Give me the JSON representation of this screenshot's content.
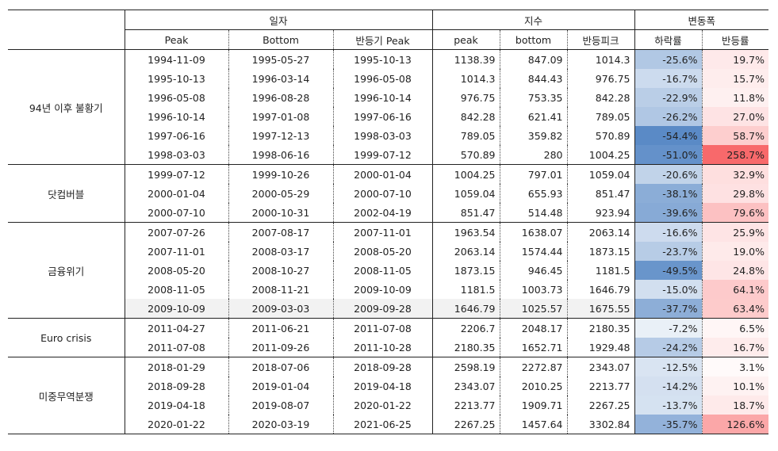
{
  "headers": {
    "group_dates": "일자",
    "group_index": "지수",
    "group_change": "변동폭",
    "cols": [
      "Peak",
      "Bottom",
      "반등기 Peak",
      "peak",
      "bottom",
      "반등피크",
      "하락률",
      "반등률"
    ]
  },
  "colors": {
    "neg_max": "#5a8ac6",
    "pos_max": "#f8696b",
    "neutral": "#ffffff"
  },
  "groups": [
    {
      "label": "94년 이후 불황기",
      "rows": [
        [
          "1994-11-09",
          "1995-05-27",
          "1995-10-13",
          "1138.39",
          "847.09",
          "1014.3",
          "-25.6%",
          "19.7%"
        ],
        [
          "1995-10-13",
          "1996-03-14",
          "1996-05-08",
          "1014.3",
          "844.43",
          "976.75",
          "-16.7%",
          "15.7%"
        ],
        [
          "1996-05-08",
          "1996-08-28",
          "1996-10-14",
          "976.75",
          "753.35",
          "842.28",
          "-22.9%",
          "11.8%"
        ],
        [
          "1996-10-14",
          "1997-01-08",
          "1997-06-16",
          "842.28",
          "621.41",
          "789.05",
          "-26.2%",
          "27.0%"
        ],
        [
          "1997-06-16",
          "1997-12-13",
          "1998-03-03",
          "789.05",
          "359.82",
          "570.89",
          "-54.4%",
          "58.7%"
        ],
        [
          "1998-03-03",
          "1998-06-16",
          "1999-07-12",
          "570.89",
          "280",
          "1004.25",
          "-51.0%",
          "258.7%"
        ]
      ]
    },
    {
      "label": "닷컴버블",
      "rows": [
        [
          "1999-07-12",
          "1999-10-26",
          "2000-01-04",
          "1004.25",
          "797.01",
          "1059.04",
          "-20.6%",
          "32.9%"
        ],
        [
          "2000-01-04",
          "2000-05-29",
          "2000-07-10",
          "1059.04",
          "655.93",
          "851.47",
          "-38.1%",
          "29.8%"
        ],
        [
          "2000-07-10",
          "2000-10-31",
          "2002-04-19",
          "851.47",
          "514.48",
          "923.94",
          "-39.6%",
          "79.6%"
        ]
      ]
    },
    {
      "label": "금융위기",
      "rows": [
        [
          "2007-07-26",
          "2007-08-17",
          "2007-11-01",
          "1963.54",
          "1638.07",
          "2063.14",
          "-16.6%",
          "25.9%"
        ],
        [
          "2007-11-01",
          "2008-03-17",
          "2008-05-20",
          "2063.14",
          "1574.44",
          "1873.15",
          "-23.7%",
          "19.0%"
        ],
        [
          "2008-05-20",
          "2008-10-27",
          "2008-11-05",
          "1873.15",
          "946.45",
          "1181.5",
          "-49.5%",
          "24.8%"
        ],
        [
          "2008-11-05",
          "2008-11-21",
          "2009-10-09",
          "1181.5",
          "1003.73",
          "1646.79",
          "-15.0%",
          "64.1%"
        ],
        [
          "2009-10-09",
          "2009-03-03",
          "2009-09-28",
          "1646.79",
          "1025.57",
          "1675.55",
          "-37.7%",
          "63.4%"
        ]
      ]
    },
    {
      "label": "Euro crisis",
      "rows": [
        [
          "2011-04-27",
          "2011-06-21",
          "2011-07-08",
          "2206.7",
          "2048.17",
          "2180.35",
          "-7.2%",
          "6.5%"
        ],
        [
          "2011-07-08",
          "2011-09-26",
          "2011-10-28",
          "2180.35",
          "1652.71",
          "1929.48",
          "-24.2%",
          "16.7%"
        ]
      ]
    },
    {
      "label": "미중무역분쟁",
      "rows": [
        [
          "2018-01-29",
          "2018-07-06",
          "2018-09-28",
          "2598.19",
          "2272.87",
          "2343.07",
          "-12.5%",
          "3.1%"
        ],
        [
          "2018-09-28",
          "2019-01-04",
          "2019-04-18",
          "2343.07",
          "2010.25",
          "2213.77",
          "-14.2%",
          "10.1%"
        ],
        [
          "2019-04-18",
          "2019-08-07",
          "2020-01-22",
          "2213.77",
          "1909.71",
          "2267.25",
          "-13.7%",
          "18.7%"
        ],
        [
          "2020-01-22",
          "2020-03-19",
          "2021-06-25",
          "2267.25",
          "1457.64",
          "3302.84",
          "-35.7%",
          "126.6%"
        ]
      ]
    }
  ]
}
